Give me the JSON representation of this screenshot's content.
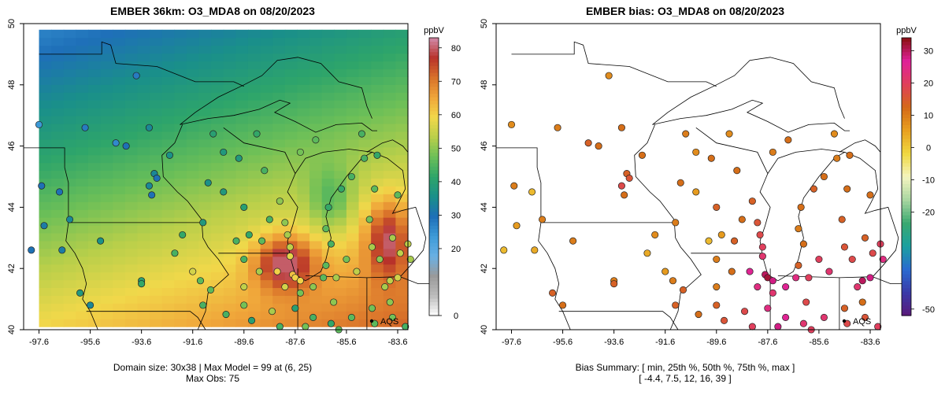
{
  "left_panel": {
    "title": "EMBER 36km: O3_MDA8 on 08/20/2023",
    "footer_line1": "Domain size: 30x38 | Max Model = 99 at (6, 25)",
    "footer_line2": "Max Obs: 75",
    "legend_unit": "ppbV",
    "legend_ticks": [
      "0",
      "20",
      "30",
      "40",
      "50",
      "60",
      "70",
      "80"
    ],
    "aqs_label": "AQS"
  },
  "right_panel": {
    "title": "EMBER bias: O3_MDA8 on 08/20/2023",
    "footer_line1": "Bias Summary: [ min, 25th %, 50th %, 75th %, max ]",
    "footer_line2": "[ -4.4,  7.5,  12,  16,  39 ]",
    "legend_unit": "ppbV",
    "legend_ticks": [
      "-50",
      "-20",
      "-10",
      "0",
      "10",
      "20",
      "30"
    ],
    "aqs_label": "AQS"
  },
  "axes": {
    "x_ticks": [
      "-97.6",
      "-95.6",
      "-93.6",
      "-91.6",
      "-89.6",
      "-87.6",
      "-85.6",
      "-83.6"
    ],
    "y_ticks": [
      "40",
      "42",
      "44",
      "46",
      "48",
      "50"
    ],
    "x_range": [
      -98.2,
      -83.2
    ],
    "y_range": [
      40,
      50
    ]
  },
  "colors": {
    "model_scale": [
      "#ffffff",
      "#bdbdbd",
      "#9a9a9a",
      "#6ab0e4",
      "#3d9bd8",
      "#1e6fb8",
      "#1a8f8a",
      "#2ea56a",
      "#6bbf58",
      "#b9cf4a",
      "#f1d84a",
      "#f0a63a",
      "#d9722a",
      "#b8322a",
      "#d08aa8"
    ],
    "bias_scale": [
      "#5a1a7a",
      "#3a3aa8",
      "#2a6ad0",
      "#1aa0a0",
      "#3aa870",
      "#a8d6a0",
      "#f4f4c0",
      "#f0d840",
      "#e8a020",
      "#d46a18",
      "#e0405a",
      "#e0209a",
      "#8a1010"
    ]
  }
}
